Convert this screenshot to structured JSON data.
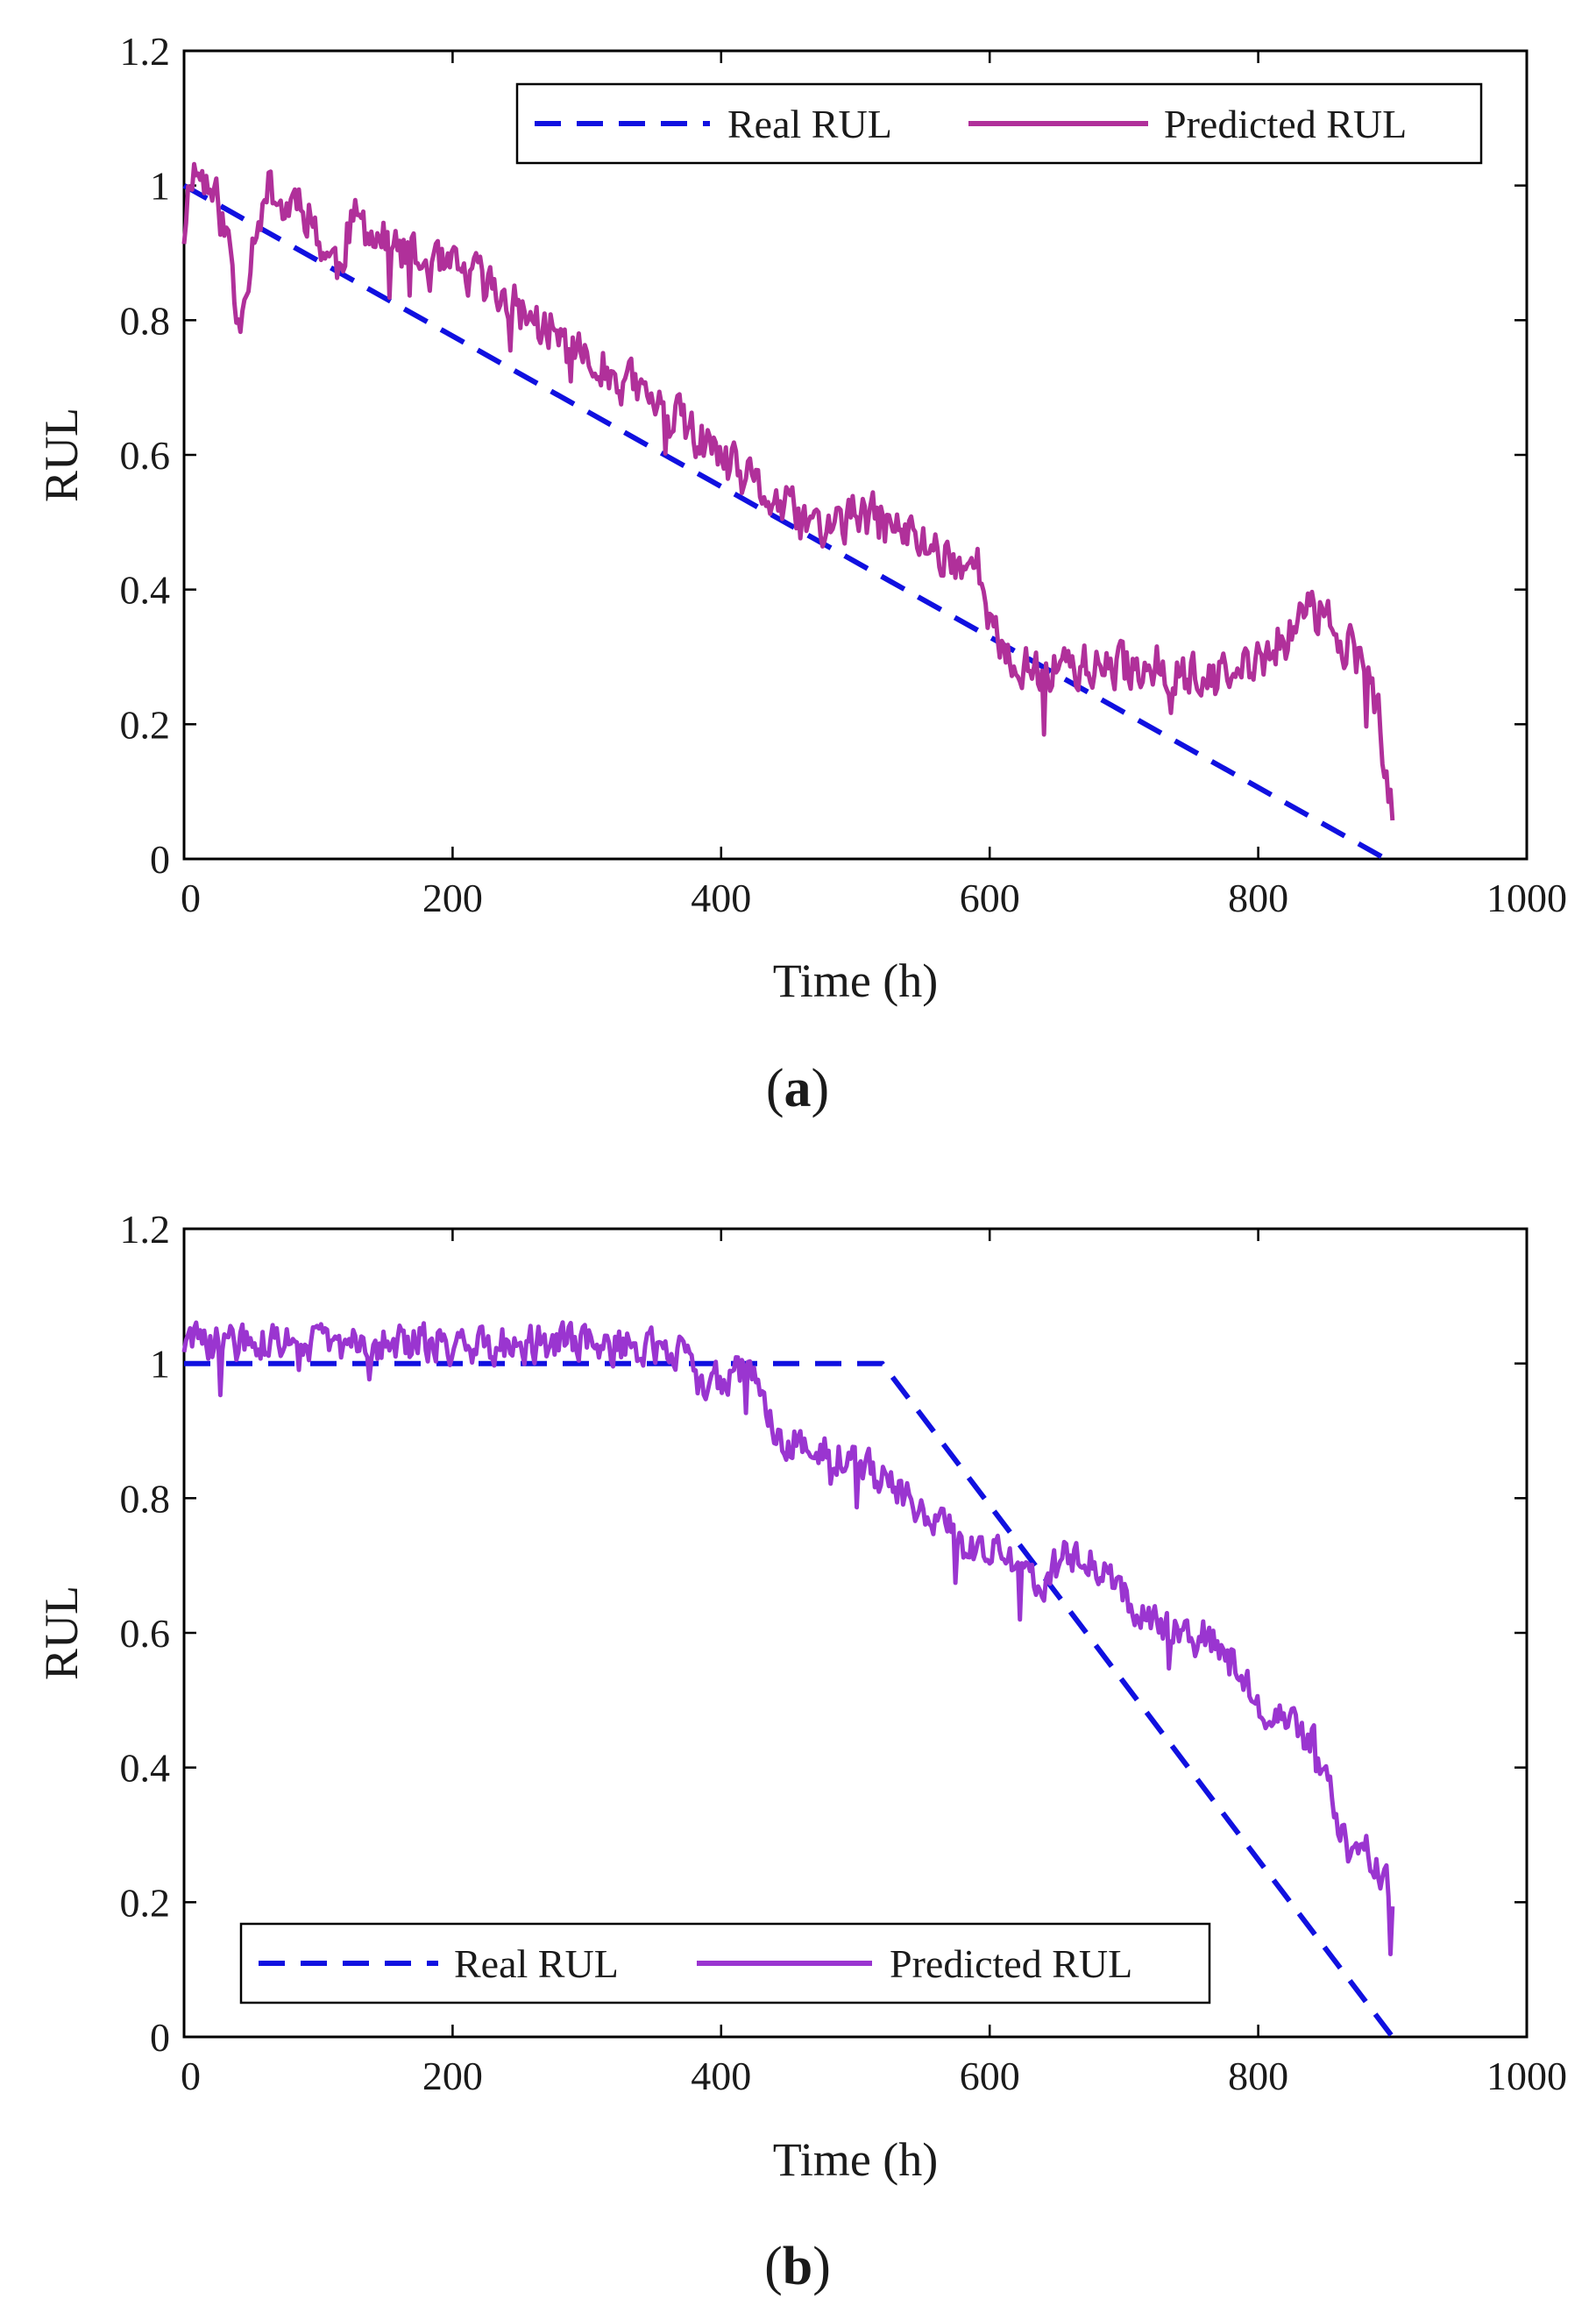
{
  "chart_data": [
    {
      "id": "a",
      "type": "line",
      "caption_letter": "a",
      "xlabel": "Time (h)",
      "ylabel": "RUL",
      "xlim": [
        0,
        1000
      ],
      "ylim": [
        0,
        1.2
      ],
      "xticks": [
        "0",
        "200",
        "400",
        "600",
        "800",
        "1000"
      ],
      "yticks": [
        "0",
        "0.2",
        "0.4",
        "0.6",
        "0.8",
        "1",
        "1.2"
      ],
      "legend_position": "top-right",
      "series": [
        {
          "name": "Real RUL",
          "style": "dashed",
          "color": "#1010e0",
          "points": [
            [
              0,
              1.0
            ],
            [
              895,
              0.0
            ]
          ]
        },
        {
          "name": "Predicted RUL",
          "style": "solid",
          "color": "#b0309a",
          "noise": 0.05,
          "seed": 11,
          "points": [
            [
              0,
              0.93
            ],
            [
              5,
              1.03
            ],
            [
              15,
              1.01
            ],
            [
              25,
              0.97
            ],
            [
              35,
              0.9
            ],
            [
              40,
              0.78
            ],
            [
              45,
              0.85
            ],
            [
              55,
              0.96
            ],
            [
              65,
              1.0
            ],
            [
              75,
              0.96
            ],
            [
              85,
              0.99
            ],
            [
              95,
              0.95
            ],
            [
              105,
              0.9
            ],
            [
              115,
              0.88
            ],
            [
              125,
              0.95
            ],
            [
              140,
              0.93
            ],
            [
              160,
              0.9
            ],
            [
              180,
              0.88
            ],
            [
              200,
              0.87
            ],
            [
              220,
              0.86
            ],
            [
              240,
              0.83
            ],
            [
              260,
              0.8
            ],
            [
              280,
              0.77
            ],
            [
              300,
              0.74
            ],
            [
              320,
              0.72
            ],
            [
              340,
              0.69
            ],
            [
              360,
              0.66
            ],
            [
              380,
              0.63
            ],
            [
              400,
              0.59
            ],
            [
              420,
              0.56
            ],
            [
              440,
              0.53
            ],
            [
              460,
              0.5
            ],
            [
              480,
              0.49
            ],
            [
              500,
              0.51
            ],
            [
              520,
              0.5
            ],
            [
              540,
              0.48
            ],
            [
              560,
              0.46
            ],
            [
              580,
              0.44
            ],
            [
              595,
              0.43
            ],
            [
              600,
              0.36
            ],
            [
              610,
              0.29
            ],
            [
              630,
              0.28
            ],
            [
              660,
              0.29
            ],
            [
              690,
              0.28
            ],
            [
              720,
              0.29
            ],
            [
              740,
              0.28
            ],
            [
              760,
              0.26
            ],
            [
              780,
              0.27
            ],
            [
              800,
              0.29
            ],
            [
              820,
              0.33
            ],
            [
              840,
              0.37
            ],
            [
              860,
              0.34
            ],
            [
              880,
              0.28
            ],
            [
              890,
              0.2
            ],
            [
              895,
              0.12
            ],
            [
              900,
              0.06
            ]
          ]
        }
      ]
    },
    {
      "id": "b",
      "type": "line",
      "caption_letter": "b",
      "xlabel": "Time (h)",
      "ylabel": "RUL",
      "xlim": [
        0,
        1000
      ],
      "ylim": [
        0,
        1.2
      ],
      "xticks": [
        "0",
        "200",
        "400",
        "600",
        "800",
        "1000"
      ],
      "yticks": [
        "0",
        "0.2",
        "0.4",
        "0.6",
        "0.8",
        "1",
        "1.2"
      ],
      "legend_position": "bottom-left",
      "series": [
        {
          "name": "Real RUL",
          "style": "dashed",
          "color": "#1010e0",
          "points": [
            [
              0,
              1.0
            ],
            [
              520,
              1.0
            ],
            [
              900,
              0.0
            ]
          ]
        },
        {
          "name": "Predicted RUL",
          "style": "solid",
          "color": "#9a35d0",
          "noise": 0.04,
          "seed": 29,
          "points": [
            [
              0,
              1.03
            ],
            [
              100,
              1.03
            ],
            [
              200,
              1.03
            ],
            [
              300,
              1.03
            ],
            [
              370,
              1.02
            ],
            [
              380,
              0.97
            ],
            [
              400,
              0.98
            ],
            [
              420,
              0.99
            ],
            [
              440,
              0.9
            ],
            [
              460,
              0.88
            ],
            [
              480,
              0.87
            ],
            [
              500,
              0.85
            ],
            [
              520,
              0.83
            ],
            [
              540,
              0.8
            ],
            [
              560,
              0.77
            ],
            [
              580,
              0.73
            ],
            [
              600,
              0.72
            ],
            [
              620,
              0.7
            ],
            [
              640,
              0.68
            ],
            [
              660,
              0.72
            ],
            [
              680,
              0.7
            ],
            [
              700,
              0.66
            ],
            [
              720,
              0.62
            ],
            [
              740,
              0.61
            ],
            [
              760,
              0.6
            ],
            [
              780,
              0.56
            ],
            [
              800,
              0.5
            ],
            [
              820,
              0.47
            ],
            [
              840,
              0.44
            ],
            [
              860,
              0.32
            ],
            [
              870,
              0.26
            ],
            [
              880,
              0.28
            ],
            [
              890,
              0.26
            ],
            [
              900,
              0.2
            ]
          ]
        }
      ]
    }
  ]
}
